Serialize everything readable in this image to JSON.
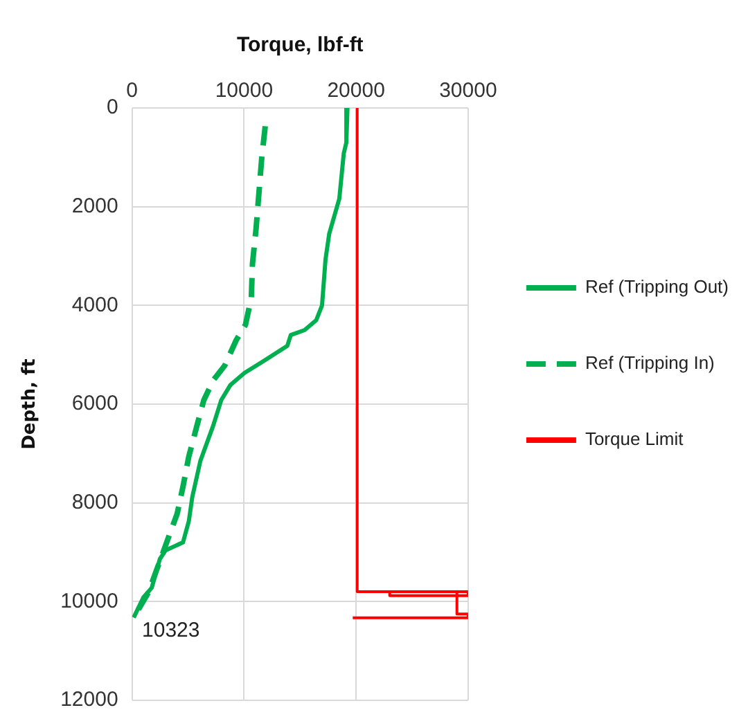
{
  "chart_data": {
    "type": "line",
    "xlabel": "Torque, lbf-ft",
    "ylabel": "Depth, ft",
    "xlim": [
      0,
      30000
    ],
    "xticks": [
      0,
      10000,
      20000,
      30000
    ],
    "ylim": [
      12000,
      0
    ],
    "yticks": [
      0,
      2000,
      4000,
      6000,
      8000,
      10000,
      12000
    ],
    "grid": true,
    "legend": "right",
    "marker": "none",
    "series": [
      {
        "name": "Ref (Tripping Out)",
        "color": "#00b050",
        "line_style": "solid",
        "x": [
          19230,
          19130,
          18900,
          18500,
          17600,
          17270,
          16960,
          16440,
          15400,
          14170,
          13860,
          11790,
          10030,
          8790,
          7960,
          7240,
          6100,
          5380,
          5070,
          4550,
          3000,
          2480,
          1760,
          1030,
          150
        ],
        "values": [
          0,
          700,
          920,
          1840,
          2550,
          3070,
          4000,
          4300,
          4500,
          4600,
          4820,
          5120,
          5370,
          5610,
          5920,
          6440,
          7150,
          7880,
          8370,
          8800,
          8960,
          9140,
          9720,
          9910,
          10323
        ]
      },
      {
        "name": "Ref (Tripping In)",
        "color": "#00b050",
        "line_style": "dashed",
        "x": [
          11890,
          11580,
          11070,
          10750,
          10650,
          10130,
          9310,
          8270,
          7240,
          6410,
          5790,
          5070,
          4550,
          4030,
          2790,
          1450,
          150
        ],
        "values": [
          370,
          1010,
          2450,
          3160,
          3840,
          4390,
          4700,
          5220,
          5520,
          5920,
          6440,
          7060,
          7670,
          8220,
          8990,
          9820,
          10323
        ]
      },
      {
        "name": "Torque Limit",
        "color": "#ff0000",
        "line_style": "solid",
        "x": [
          20100,
          20100,
          30000,
          30000,
          23000,
          23000,
          29000,
          29000,
          30000,
          30000,
          19700
        ],
        "values": [
          0,
          9800,
          9800,
          9880,
          9880,
          9800,
          9800,
          10250,
          10250,
          10330,
          10330
        ]
      }
    ],
    "annotations": [
      {
        "text": "10323",
        "x": 150,
        "y": 10323
      }
    ]
  }
}
